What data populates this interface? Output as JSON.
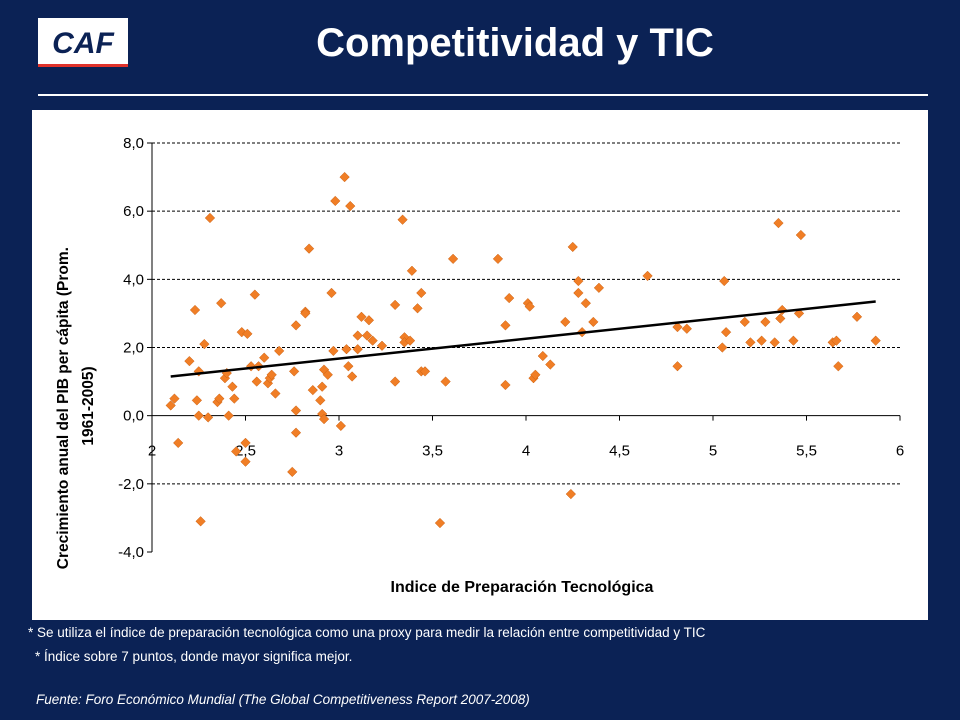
{
  "slide": {
    "logo_text": "CAF",
    "title": "Competitividad y TIC",
    "note1": "* Se utiliza el índice de preparación tecnológica como una proxy para  medir la relación entre competitividad y TIC",
    "note2": "* Índice sobre 7 puntos, donde mayor significa mejor.",
    "source": "Fuente: Foro Económico Mundial (The Global Competitiveness Report  2007-2008)"
  },
  "colors": {
    "background": "#0b2255",
    "marker": "#f07e26",
    "trendline": "#000000",
    "logo_accent": "#e0322b"
  },
  "chart_data": {
    "type": "scatter",
    "xlabel": "Indice de Preparación Tecnológica",
    "ylabel_line1": "Crecimiento anual del PIB per cápita (Prom.",
    "ylabel_line2": "1961-2005)",
    "xlim": [
      2,
      6
    ],
    "ylim": [
      -4,
      8
    ],
    "x_ticks": [
      2,
      2.5,
      3,
      3.5,
      4,
      4.5,
      5,
      5.5,
      6
    ],
    "x_tick_labels": [
      "2",
      "2,5",
      "3",
      "3,5",
      "4",
      "4,5",
      "5",
      "5,5",
      "6"
    ],
    "y_ticks": [
      -4,
      -2,
      0,
      2,
      4,
      6,
      8
    ],
    "y_tick_labels": [
      "-4,0",
      "-2,0",
      "0,0",
      "2,0",
      "4,0",
      "6,0",
      "8,0"
    ],
    "grid": "horizontal dashed",
    "trendline": {
      "x": [
        2.1,
        5.87
      ],
      "y": [
        1.15,
        3.35
      ]
    },
    "points": [
      [
        2.1,
        0.3
      ],
      [
        2.12,
        0.5
      ],
      [
        2.14,
        -0.8
      ],
      [
        2.2,
        1.6
      ],
      [
        2.23,
        3.1
      ],
      [
        2.24,
        0.45
      ],
      [
        2.25,
        1.3
      ],
      [
        2.25,
        0.0
      ],
      [
        2.26,
        -3.1
      ],
      [
        2.28,
        2.1
      ],
      [
        2.3,
        -0.05
      ],
      [
        2.31,
        5.8
      ],
      [
        2.35,
        0.4
      ],
      [
        2.36,
        0.5
      ],
      [
        2.37,
        3.3
      ],
      [
        2.39,
        1.1
      ],
      [
        2.4,
        1.25
      ],
      [
        2.41,
        0.0
      ],
      [
        2.43,
        0.85
      ],
      [
        2.44,
        0.5
      ],
      [
        2.45,
        -1.05
      ],
      [
        2.48,
        2.45
      ],
      [
        2.5,
        -1.35
      ],
      [
        2.5,
        -0.8
      ],
      [
        2.51,
        2.4
      ],
      [
        2.53,
        1.45
      ],
      [
        2.55,
        3.55
      ],
      [
        2.56,
        1.0
      ],
      [
        2.57,
        1.45
      ],
      [
        2.6,
        1.7
      ],
      [
        2.62,
        0.95
      ],
      [
        2.63,
        1.1
      ],
      [
        2.64,
        1.2
      ],
      [
        2.66,
        0.65
      ],
      [
        2.68,
        1.9
      ],
      [
        2.75,
        -1.65
      ],
      [
        2.76,
        1.3
      ],
      [
        2.77,
        2.65
      ],
      [
        2.77,
        0.15
      ],
      [
        2.77,
        -0.5
      ],
      [
        2.82,
        3.05
      ],
      [
        2.82,
        3.0
      ],
      [
        2.84,
        4.9
      ],
      [
        2.86,
        0.75
      ],
      [
        2.9,
        0.45
      ],
      [
        2.91,
        0.85
      ],
      [
        2.91,
        0.05
      ],
      [
        2.92,
        -0.1
      ],
      [
        2.92,
        1.35
      ],
      [
        2.94,
        1.2
      ],
      [
        2.96,
        3.6
      ],
      [
        2.97,
        1.9
      ],
      [
        2.98,
        6.3
      ],
      [
        3.01,
        -0.3
      ],
      [
        3.03,
        7.0
      ],
      [
        3.04,
        1.95
      ],
      [
        3.05,
        1.45
      ],
      [
        3.06,
        6.15
      ],
      [
        3.07,
        1.15
      ],
      [
        3.1,
        2.35
      ],
      [
        3.12,
        2.9
      ],
      [
        3.1,
        1.95
      ],
      [
        3.15,
        2.35
      ],
      [
        3.16,
        2.8
      ],
      [
        3.18,
        2.2
      ],
      [
        3.23,
        2.05
      ],
      [
        3.3,
        3.25
      ],
      [
        3.3,
        1.0
      ],
      [
        3.34,
        5.75
      ],
      [
        3.35,
        2.3
      ],
      [
        3.35,
        2.15
      ],
      [
        3.38,
        2.2
      ],
      [
        3.39,
        4.25
      ],
      [
        3.42,
        3.15
      ],
      [
        3.44,
        3.6
      ],
      [
        3.44,
        1.3
      ],
      [
        3.46,
        1.3
      ],
      [
        3.57,
        1.0
      ],
      [
        3.61,
        4.6
      ],
      [
        3.54,
        -3.15
      ],
      [
        3.85,
        4.6
      ],
      [
        3.89,
        0.9
      ],
      [
        3.89,
        2.65
      ],
      [
        3.91,
        3.45
      ],
      [
        4.01,
        3.3
      ],
      [
        4.02,
        3.2
      ],
      [
        4.04,
        1.1
      ],
      [
        4.05,
        1.2
      ],
      [
        4.09,
        1.75
      ],
      [
        4.13,
        1.5
      ],
      [
        4.21,
        2.75
      ],
      [
        4.24,
        -2.3
      ],
      [
        4.25,
        4.95
      ],
      [
        4.28,
        3.6
      ],
      [
        4.28,
        3.95
      ],
      [
        4.3,
        2.45
      ],
      [
        4.32,
        3.3
      ],
      [
        4.36,
        2.75
      ],
      [
        4.39,
        3.75
      ],
      [
        4.65,
        4.1
      ],
      [
        4.81,
        1.45
      ],
      [
        4.81,
        2.6
      ],
      [
        4.86,
        2.55
      ],
      [
        5.05,
        2.0
      ],
      [
        5.06,
        3.95
      ],
      [
        5.07,
        2.45
      ],
      [
        5.17,
        2.75
      ],
      [
        5.2,
        2.15
      ],
      [
        5.26,
        2.2
      ],
      [
        5.28,
        2.75
      ],
      [
        5.33,
        2.15
      ],
      [
        5.35,
        5.65
      ],
      [
        5.36,
        2.85
      ],
      [
        5.37,
        3.1
      ],
      [
        5.43,
        2.2
      ],
      [
        5.46,
        3.0
      ],
      [
        5.47,
        5.3
      ],
      [
        5.64,
        2.15
      ],
      [
        5.66,
        2.2
      ],
      [
        5.67,
        1.45
      ],
      [
        5.77,
        2.9
      ],
      [
        5.87,
        2.2
      ]
    ]
  }
}
